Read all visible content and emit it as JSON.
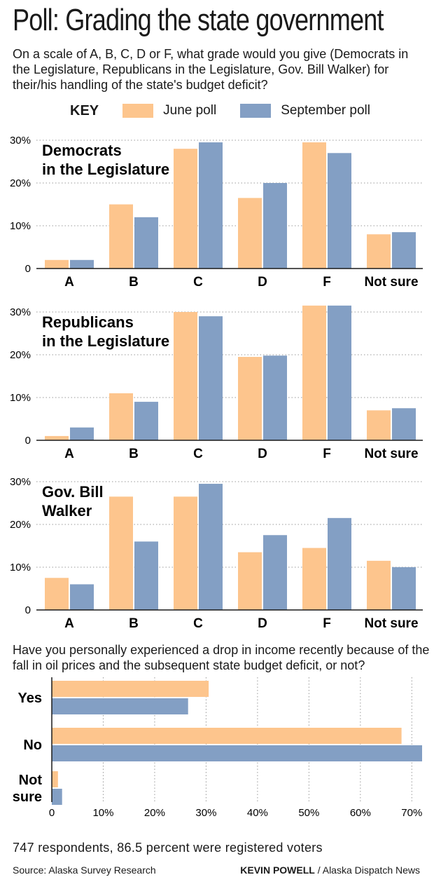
{
  "title": "Poll: Grading the state government",
  "question": "On a scale of A, B, C, D or F, what grade would you give (Democrats in the Legislature, Republicans in the Legislature, Gov. Bill Walker) for their/his handling of the state's budget deficit?",
  "legend": {
    "key_label": "KEY",
    "june": "June poll",
    "september": "September poll"
  },
  "colors": {
    "june": "#fdc58d",
    "september": "#839fc4",
    "grid": "#9a9a9a",
    "text": "#1a1a1a"
  },
  "question2": "Have you personally experienced a drop in income recently because of the fall in oil prices and the subsequent state budget deficit, or not?",
  "footnote": "747 respondents, 86.5 percent were registered voters",
  "source": "Source: Alaska Survey Research",
  "credit_name": "KEVIN POWELL",
  "credit_org": " / Alaska Dispatch News",
  "chart_data": [
    {
      "type": "bar",
      "panel_label": [
        "Democrats",
        "in the Legislature"
      ],
      "categories": [
        "A",
        "B",
        "C",
        "D",
        "F",
        "Not sure"
      ],
      "y_ticks": [
        "0",
        "10%",
        "20%",
        "30%"
      ],
      "ylim": [
        0,
        30
      ],
      "grid": true,
      "series": [
        {
          "name": "June poll",
          "values": [
            2,
            15,
            28,
            16.5,
            29.5,
            8
          ]
        },
        {
          "name": "September poll",
          "values": [
            2,
            12,
            29.5,
            20,
            27,
            8.5
          ]
        }
      ]
    },
    {
      "type": "bar",
      "panel_label": [
        "Republicans",
        "in the Legislature"
      ],
      "categories": [
        "A",
        "B",
        "C",
        "D",
        "F",
        "Not sure"
      ],
      "y_ticks": [
        "0",
        "10%",
        "20%",
        "30%"
      ],
      "ylim": [
        0,
        30
      ],
      "grid": true,
      "series": [
        {
          "name": "June poll",
          "values": [
            1,
            11,
            30,
            19.5,
            31.5,
            7
          ]
        },
        {
          "name": "September poll",
          "values": [
            3,
            9,
            29,
            19.8,
            31.5,
            7.5
          ]
        }
      ]
    },
    {
      "type": "bar",
      "panel_label": [
        "Gov. Bill",
        "Walker"
      ],
      "categories": [
        "A",
        "B",
        "C",
        "D",
        "F",
        "Not sure"
      ],
      "y_ticks": [
        "0",
        "10%",
        "20%",
        "30%"
      ],
      "ylim": [
        0,
        30
      ],
      "grid": true,
      "series": [
        {
          "name": "June poll",
          "values": [
            7.5,
            26.5,
            26.5,
            13.5,
            14.5,
            11.5
          ]
        },
        {
          "name": "September poll",
          "values": [
            6,
            16,
            29.5,
            17.5,
            21.5,
            10
          ]
        }
      ]
    },
    {
      "type": "bar",
      "orientation": "horizontal",
      "categories": [
        [
          "Yes"
        ],
        [
          "No"
        ],
        [
          "Not",
          "sure"
        ]
      ],
      "x_ticks": [
        "0",
        "10%",
        "20%",
        "30%",
        "40%",
        "50%",
        "60%",
        "70%"
      ],
      "xlim": [
        0,
        72
      ],
      "grid": true,
      "series": [
        {
          "name": "June poll",
          "values": [
            30.5,
            68,
            1.2
          ]
        },
        {
          "name": "September poll",
          "values": [
            26.5,
            72,
            2
          ]
        }
      ]
    }
  ]
}
